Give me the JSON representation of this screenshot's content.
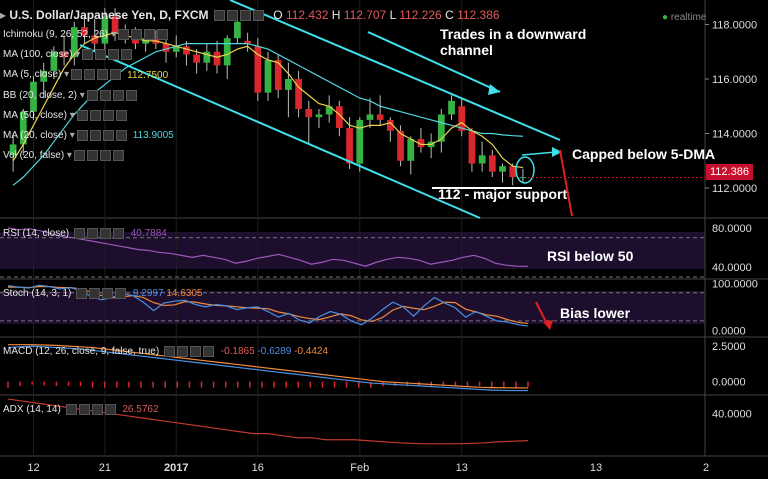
{
  "header": {
    "symbol_title": "U.S. Dollar/Japanese Yen, D, FXCM",
    "ohlc": {
      "o_label": "O",
      "o": "112.432",
      "h_label": "H",
      "h": "112.707",
      "l_label": "L",
      "l": "112.226",
      "c_label": "C",
      "c": "112.386"
    },
    "realtime": "realtime"
  },
  "indicators": [
    {
      "label": "Ichimoku (9, 26, 52, 26)",
      "value": "",
      "color": "#ffffff"
    },
    {
      "label": "MA (100, close)",
      "value": "",
      "color": "#ffffff"
    },
    {
      "label": "MA (5, close)",
      "value": "112.7500",
      "color": "#e8d44d"
    },
    {
      "label": "BB (20, close, 2)",
      "value": "",
      "color": "#ffffff"
    },
    {
      "label": "MA (50, close)",
      "value": "",
      "color": "#ffffff"
    },
    {
      "label": "MA (20, close)",
      "value": "113.9005",
      "color": "#53d6e0"
    },
    {
      "label": "Vol (20, false)",
      "value": "",
      "color": "#ffffff"
    }
  ],
  "annotations": {
    "channel": "Trades in a downward\nchannel",
    "capped": "Capped below 5-DMA",
    "support": "112 - major support",
    "rsi": "RSI below 50",
    "bias": "Bias lower"
  },
  "price_tag": "112.386",
  "colors": {
    "up": "#35b443",
    "down": "#d9272e",
    "channel": "#3fe0ea",
    "ma5": "#e8d44d",
    "ma20": "#53d6e0",
    "rsi": "#9b59b6",
    "stoch_k": "#4a90e2",
    "stoch_d": "#f08a3c",
    "macd": "#4a90e2",
    "signal": "#f08a3c",
    "adx": "#c0392b"
  },
  "chart_data": [
    {
      "type": "candlestick",
      "title": "U.S. Dollar/Japanese Yen, D, FXCM",
      "x_ticks": [
        "12",
        "21",
        "2017",
        "16",
        "Feb",
        "13",
        "2"
      ],
      "y_ticks": [
        "118.0000",
        "116.0000",
        "114.0000",
        "112.0000"
      ],
      "ylim": [
        110.9,
        118.9
      ],
      "candles": [
        {
          "o": 113.2,
          "h": 114.0,
          "l": 112.6,
          "c": 113.6
        },
        {
          "o": 113.6,
          "h": 114.9,
          "l": 113.2,
          "c": 114.8
        },
        {
          "o": 114.8,
          "h": 116.1,
          "l": 114.5,
          "c": 115.9
        },
        {
          "o": 115.9,
          "h": 116.6,
          "l": 115.3,
          "c": 116.3
        },
        {
          "o": 116.3,
          "h": 117.2,
          "l": 116.0,
          "c": 117.0
        },
        {
          "o": 117.0,
          "h": 117.6,
          "l": 116.5,
          "c": 116.8
        },
        {
          "o": 116.8,
          "h": 118.1,
          "l": 116.5,
          "c": 117.9
        },
        {
          "o": 117.9,
          "h": 118.3,
          "l": 117.3,
          "c": 117.6
        },
        {
          "o": 117.6,
          "h": 118.2,
          "l": 117.0,
          "c": 117.3
        },
        {
          "o": 117.3,
          "h": 118.6,
          "l": 117.0,
          "c": 118.3
        },
        {
          "o": 118.3,
          "h": 118.6,
          "l": 117.4,
          "c": 117.7
        },
        {
          "o": 117.7,
          "h": 118.0,
          "l": 117.3,
          "c": 117.5
        },
        {
          "o": 117.5,
          "h": 117.9,
          "l": 117.1,
          "c": 117.3
        },
        {
          "o": 117.3,
          "h": 117.7,
          "l": 117.0,
          "c": 117.5
        },
        {
          "o": 117.5,
          "h": 117.8,
          "l": 117.1,
          "c": 117.3
        },
        {
          "o": 117.3,
          "h": 117.5,
          "l": 116.6,
          "c": 117.0
        },
        {
          "o": 117.0,
          "h": 117.6,
          "l": 116.8,
          "c": 117.2
        },
        {
          "o": 117.2,
          "h": 117.4,
          "l": 116.5,
          "c": 116.9
        },
        {
          "o": 116.9,
          "h": 117.1,
          "l": 116.2,
          "c": 116.6
        },
        {
          "o": 116.6,
          "h": 117.3,
          "l": 116.3,
          "c": 117.0
        },
        {
          "o": 117.0,
          "h": 117.4,
          "l": 116.2,
          "c": 116.5
        },
        {
          "o": 116.5,
          "h": 117.6,
          "l": 116.0,
          "c": 117.5
        },
        {
          "o": 117.5,
          "h": 118.3,
          "l": 117.3,
          "c": 118.1
        },
        {
          "o": 117.4,
          "h": 117.7,
          "l": 117.0,
          "c": 117.3
        },
        {
          "o": 117.2,
          "h": 117.5,
          "l": 115.2,
          "c": 115.5
        },
        {
          "o": 115.5,
          "h": 117.0,
          "l": 115.2,
          "c": 116.7
        },
        {
          "o": 116.7,
          "h": 116.9,
          "l": 115.3,
          "c": 115.6
        },
        {
          "o": 115.6,
          "h": 116.6,
          "l": 114.6,
          "c": 116.0
        },
        {
          "o": 116.0,
          "h": 116.3,
          "l": 114.6,
          "c": 114.9
        },
        {
          "o": 114.9,
          "h": 115.2,
          "l": 113.6,
          "c": 114.6
        },
        {
          "o": 114.6,
          "h": 114.9,
          "l": 114.2,
          "c": 114.7
        },
        {
          "o": 114.7,
          "h": 115.4,
          "l": 114.4,
          "c": 115.0
        },
        {
          "o": 115.0,
          "h": 115.2,
          "l": 113.9,
          "c": 114.2
        },
        {
          "o": 114.2,
          "h": 114.6,
          "l": 112.7,
          "c": 112.9
        },
        {
          "o": 112.9,
          "h": 114.6,
          "l": 112.6,
          "c": 114.5
        },
        {
          "o": 114.5,
          "h": 115.3,
          "l": 114.2,
          "c": 114.7
        },
        {
          "o": 114.7,
          "h": 115.4,
          "l": 114.3,
          "c": 114.5
        },
        {
          "o": 114.5,
          "h": 114.6,
          "l": 113.7,
          "c": 114.1
        },
        {
          "o": 114.1,
          "h": 114.3,
          "l": 112.8,
          "c": 113.0
        },
        {
          "o": 113.0,
          "h": 113.9,
          "l": 112.5,
          "c": 113.8
        },
        {
          "o": 113.8,
          "h": 114.2,
          "l": 113.3,
          "c": 113.5
        },
        {
          "o": 113.5,
          "h": 114.0,
          "l": 113.1,
          "c": 113.7
        },
        {
          "o": 113.7,
          "h": 114.9,
          "l": 113.3,
          "c": 114.7
        },
        {
          "o": 114.7,
          "h": 115.4,
          "l": 114.5,
          "c": 115.2
        },
        {
          "o": 115.0,
          "h": 115.3,
          "l": 113.9,
          "c": 114.1
        },
        {
          "o": 114.1,
          "h": 114.2,
          "l": 112.6,
          "c": 112.9
        },
        {
          "o": 112.9,
          "h": 113.7,
          "l": 112.6,
          "c": 113.2
        },
        {
          "o": 113.2,
          "h": 113.4,
          "l": 112.4,
          "c": 112.6
        },
        {
          "o": 112.6,
          "h": 112.9,
          "l": 112.2,
          "c": 112.8
        },
        {
          "o": 112.8,
          "h": 112.9,
          "l": 112.1,
          "c": 112.4
        },
        {
          "o": 112.4,
          "h": 112.7,
          "l": 112.2,
          "c": 112.4
        }
      ],
      "ma5": [
        113.0,
        113.6,
        114.3,
        115.0,
        115.7,
        116.4,
        116.9,
        117.3,
        117.5,
        117.6,
        117.7,
        117.6,
        117.5,
        117.4,
        117.4,
        117.3,
        117.2,
        117.1,
        117.0,
        116.9,
        116.8,
        116.9,
        117.1,
        117.2,
        116.9,
        116.7,
        116.6,
        116.2,
        115.7,
        115.4,
        115.1,
        115.0,
        114.7,
        114.3,
        114.2,
        114.3,
        114.3,
        114.4,
        114.0,
        113.8,
        113.6,
        113.6,
        113.8,
        114.2,
        114.4,
        114.1,
        113.9,
        113.6,
        113.1,
        112.8,
        112.75
      ],
      "ma20": [
        112.1,
        112.4,
        112.8,
        113.2,
        113.7,
        114.2,
        114.7,
        115.1,
        115.5,
        115.8,
        116.1,
        116.4,
        116.6,
        116.8,
        117.0,
        117.1,
        117.2,
        117.3,
        117.3,
        117.3,
        117.3,
        117.3,
        117.3,
        117.3,
        117.2,
        117.1,
        116.9,
        116.7,
        116.5,
        116.3,
        116.1,
        115.9,
        115.7,
        115.5,
        115.3,
        115.2,
        115.0,
        114.9,
        114.8,
        114.7,
        114.6,
        114.5,
        114.4,
        114.3,
        114.2,
        114.1,
        114.0,
        114.0,
        113.95,
        113.92,
        113.9005
      ]
    },
    {
      "type": "line",
      "title": "RSI (14, close)",
      "value_label": "40.7884",
      "y_ticks": [
        "80.0000",
        "40.0000"
      ],
      "ylim": [
        30,
        88
      ],
      "values": [
        80,
        78,
        79,
        77,
        74,
        71,
        70,
        68,
        66,
        64,
        62,
        60,
        58,
        57,
        55,
        54,
        52,
        50,
        52,
        50,
        48,
        44,
        46,
        49,
        51,
        53,
        50,
        47,
        43,
        45,
        48,
        47,
        44,
        41,
        45,
        48,
        50,
        49,
        47,
        43,
        45,
        47,
        50,
        52,
        49,
        44,
        42,
        41,
        40.7884
      ]
    },
    {
      "type": "line",
      "title": "Stoch (14, 3, 1)",
      "value_label": "9.2997",
      "value_label2": "14.6305",
      "y_ticks": [
        "100.0000",
        "0.0000"
      ],
      "ylim": [
        -10,
        105
      ],
      "k": [
        95,
        92,
        90,
        96,
        93,
        88,
        91,
        84,
        72,
        65,
        70,
        78,
        74,
        60,
        42,
        58,
        62,
        64,
        55,
        50,
        55,
        52,
        44,
        48,
        50,
        40,
        28,
        36,
        22,
        16,
        30,
        40,
        34,
        20,
        12,
        26,
        44,
        60,
        50,
        30,
        52,
        70,
        58,
        48,
        28,
        40,
        30,
        20,
        18,
        12,
        9.2997
      ],
      "d": [
        92,
        92,
        91,
        93,
        93,
        91,
        91,
        88,
        82,
        74,
        69,
        71,
        74,
        70,
        59,
        53,
        54,
        61,
        60,
        56,
        53,
        52,
        50,
        48,
        47,
        46,
        39,
        35,
        29,
        25,
        23,
        29,
        35,
        31,
        22,
        19,
        27,
        43,
        51,
        47,
        44,
        51,
        60,
        59,
        45,
        39,
        33,
        30,
        23,
        17,
        14.6305
      ]
    },
    {
      "type": "line",
      "title": "MACD (12, 26, close, 9, false, true)",
      "value_label": "-0.1865",
      "value_label2": "-0.6289",
      "value_label3": "-0.4424",
      "y_ticks": [
        "2.5000",
        "0.0000"
      ],
      "ylim": [
        -0.8,
        3.0
      ],
      "macd": [
        2.4,
        2.45,
        2.5,
        2.45,
        2.4,
        2.35,
        2.3,
        2.2,
        2.1,
        2.0,
        1.9,
        1.8,
        1.7,
        1.6,
        1.5,
        1.4,
        1.3,
        1.2,
        1.1,
        1.0,
        0.9,
        0.8,
        0.7,
        0.6,
        0.5,
        0.4,
        0.3,
        0.2,
        0.1,
        0.0,
        -0.1,
        -0.15,
        -0.2,
        -0.25,
        -0.3,
        -0.35,
        -0.4,
        -0.45,
        -0.5,
        -0.55,
        -0.6,
        -0.62,
        -0.63,
        -0.6289
      ],
      "signal": [
        2.6,
        2.6,
        2.6,
        2.58,
        2.55,
        2.5,
        2.45,
        2.4,
        2.3,
        2.2,
        2.1,
        2.0,
        1.9,
        1.8,
        1.7,
        1.6,
        1.5,
        1.4,
        1.3,
        1.2,
        1.1,
        1.0,
        0.9,
        0.8,
        0.7,
        0.6,
        0.5,
        0.4,
        0.3,
        0.2,
        0.1,
        0.0,
        -0.05,
        -0.1,
        -0.15,
        -0.2,
        -0.25,
        -0.3,
        -0.35,
        -0.4,
        -0.42,
        -0.43,
        -0.44,
        -0.4424
      ]
    },
    {
      "type": "line",
      "title": "ADX (14, 14)",
      "value_label": "26.5762",
      "y_ticks": [
        "40.0000"
      ],
      "ylim": [
        20,
        48
      ],
      "values": [
        47,
        46,
        45,
        44,
        43,
        42,
        41,
        40,
        39,
        38,
        37,
        36,
        35,
        34,
        33,
        32,
        31,
        30,
        30,
        29,
        28,
        28,
        27,
        27,
        27,
        26.5,
        26,
        25.5,
        25.2,
        25,
        25,
        25,
        25.2,
        25.5,
        26,
        26.3,
        26.5762
      ]
    }
  ]
}
